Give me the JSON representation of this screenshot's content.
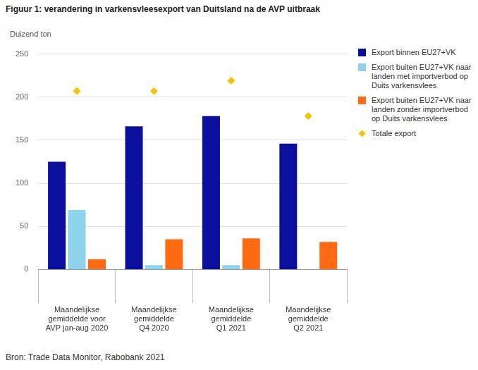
{
  "chart_data": {
    "type": "bar",
    "title": "Figuur 1: verandering in varkensvleesexport van Duitsland na de AVP uitbraak",
    "y_label": "Duizend ton",
    "source": "Bron: Trade Data Monitor, Rabobank 2021",
    "categories": [
      [
        "Maandelijkse",
        "gemiddelde voor",
        "AVP jan-aug 2020"
      ],
      [
        "Maandelijkse",
        "gemiddelde",
        "Q4 2020"
      ],
      [
        "Maandelijkse",
        "gemiddelde",
        "Q1 2021"
      ],
      [
        "Maandelijkse",
        "gemiddelde",
        "Q2 2021"
      ]
    ],
    "series": [
      {
        "name": "Export binnen EU27+VK",
        "color": "#0b0f9e",
        "values": [
          125,
          166,
          178,
          146
        ]
      },
      {
        "name": "Export buiten EU27+VK naar landen met importverbod op Duits varkensvlees",
        "color": "#8fd3ea",
        "values": [
          69,
          5,
          5,
          0
        ]
      },
      {
        "name": "Export buiten EU27+VK naar landen zonder importverbod op Duits varkensvlees",
        "color": "#ff6a13",
        "values": [
          12,
          35,
          36,
          32
        ]
      },
      {
        "name": "Totale export",
        "color": "#f5c200",
        "type": "line",
        "marker": "diamond",
        "line_style": "none",
        "values": [
          207,
          207,
          219,
          178
        ]
      }
    ],
    "ylim": [
      0,
      250
    ],
    "yticks": [
      0,
      50,
      100,
      150,
      200,
      250
    ],
    "grid": true,
    "legend": "right",
    "stacked": false
  }
}
